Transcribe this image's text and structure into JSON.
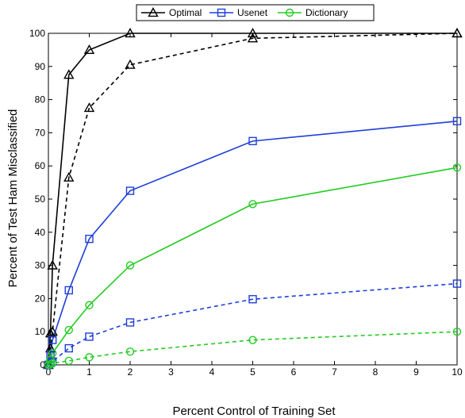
{
  "chart_data": {
    "type": "line",
    "xlabel": "Percent Control of Training Set",
    "ylabel": "Percent of Test Ham Misclassified",
    "xlim": [
      0,
      10
    ],
    "ylim": [
      0,
      100
    ],
    "x_ticks": [
      0,
      1,
      2,
      3,
      4,
      5,
      6,
      7,
      8,
      9,
      10
    ],
    "y_ticks": [
      0,
      10,
      20,
      30,
      40,
      50,
      60,
      70,
      80,
      90,
      100
    ],
    "grid": false,
    "legend_position": "top",
    "legend": [
      {
        "name": "Optimal",
        "color": "#000000",
        "marker": "triangle"
      },
      {
        "name": "Usenet",
        "color": "#1f3fd9",
        "marker": "square"
      },
      {
        "name": "Dictionary",
        "color": "#22cc22",
        "marker": "circle"
      }
    ],
    "series": [
      {
        "legend_index": 0,
        "color": "#000000",
        "marker": "triangle",
        "line": "solid",
        "x": [
          0,
          0.05,
          0.1,
          0.5,
          1,
          2,
          5,
          10
        ],
        "y": [
          0,
          9.5,
          30,
          87.5,
          95,
          100,
          100,
          100
        ]
      },
      {
        "legend_index": 0,
        "color": "#000000",
        "marker": "triangle",
        "line": "dashed",
        "x": [
          0,
          0.05,
          0.1,
          0.5,
          1,
          2,
          5,
          10
        ],
        "y": [
          0,
          5,
          10,
          56.5,
          77.5,
          90.5,
          98.5,
          100
        ]
      },
      {
        "legend_index": 1,
        "color": "#1f3fd9",
        "marker": "square",
        "line": "solid",
        "x": [
          0,
          0.05,
          0.1,
          0.5,
          1,
          2,
          5,
          10
        ],
        "y": [
          0,
          3,
          7.5,
          22.5,
          38,
          52.5,
          67.5,
          73.5
        ]
      },
      {
        "legend_index": 1,
        "color": "#1f3fd9",
        "marker": "square",
        "line": "dashed",
        "x": [
          0,
          0.05,
          0.1,
          0.5,
          1,
          2,
          5,
          10
        ],
        "y": [
          0,
          0.5,
          1,
          5,
          8.5,
          12.8,
          19.8,
          24.5
        ]
      },
      {
        "legend_index": 2,
        "color": "#22cc22",
        "marker": "circle",
        "line": "solid",
        "x": [
          0,
          0.05,
          0.1,
          0.5,
          1,
          2,
          5,
          10
        ],
        "y": [
          0,
          1.5,
          3.5,
          10.5,
          18,
          30,
          48.5,
          59.5
        ]
      },
      {
        "legend_index": 2,
        "color": "#22cc22",
        "marker": "circle",
        "line": "dashed",
        "x": [
          0,
          0.05,
          0.1,
          0.5,
          1,
          2,
          5,
          10
        ],
        "y": [
          0,
          0.2,
          0.5,
          1.2,
          2.3,
          4,
          7.5,
          10
        ]
      }
    ]
  }
}
